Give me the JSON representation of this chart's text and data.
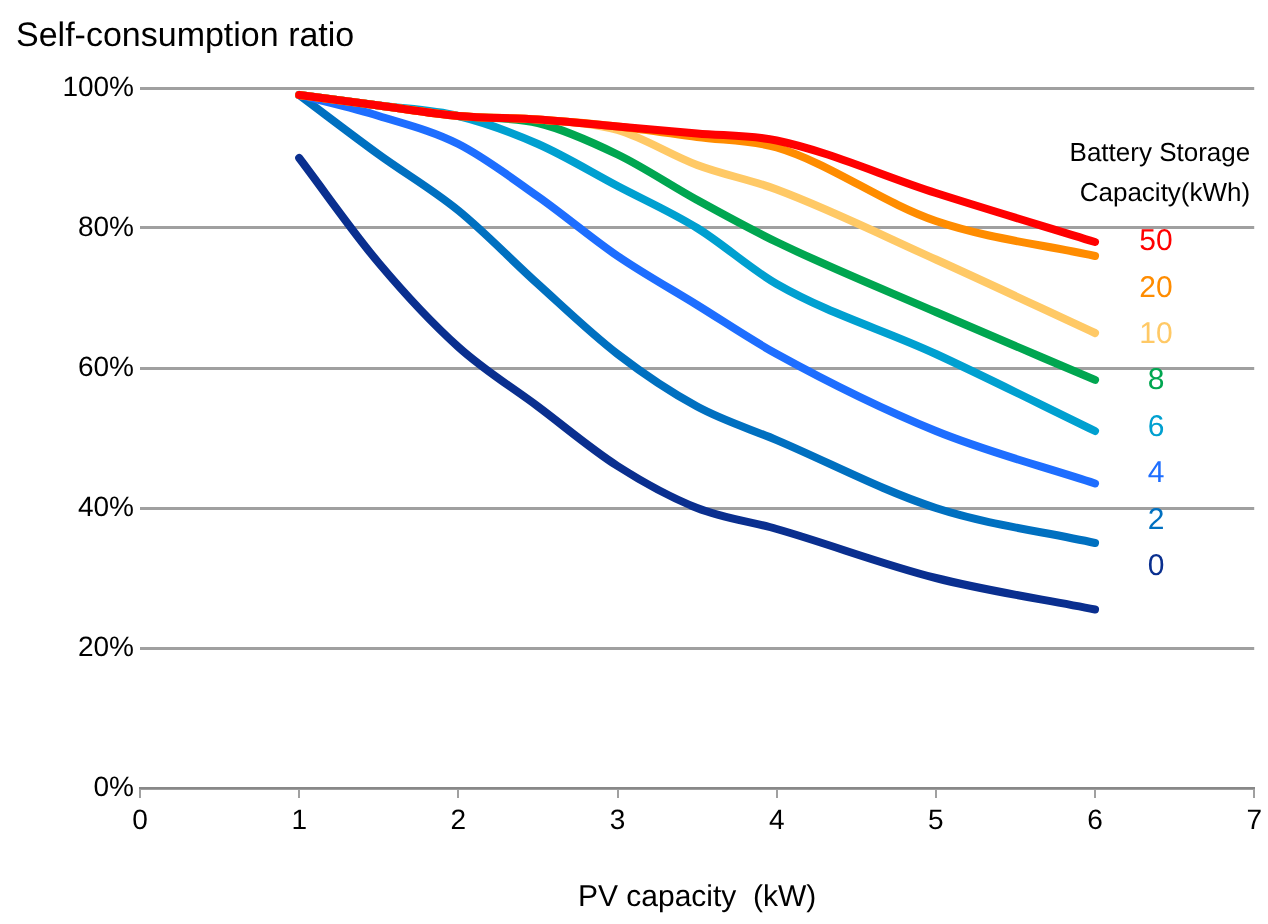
{
  "chart_data": {
    "type": "line",
    "title": "Self-consumption ratio",
    "xlabel": "PV capacity  (kW)",
    "legend_title": "Battery Storage Capacity(kWh)",
    "legend": "right",
    "grid": "y",
    "marker": "none",
    "line_style": "solid",
    "xlim": [
      0,
      7
    ],
    "xticks": [
      0,
      1,
      2,
      3,
      4,
      5,
      6,
      7
    ],
    "ylim": [
      0,
      100
    ],
    "yticks": [
      {
        "value": 0,
        "label": "0%"
      },
      {
        "value": 20,
        "label": "20%"
      },
      {
        "value": 40,
        "label": "40%"
      },
      {
        "value": 60,
        "label": "60%"
      },
      {
        "value": 80,
        "label": "80%"
      },
      {
        "value": 100,
        "label": "100%"
      }
    ],
    "x": [
      1,
      1.5,
      2,
      2.5,
      3,
      3.5,
      4,
      5,
      6
    ],
    "series": [
      {
        "name": "50",
        "color": "#ff0000",
        "values": [
          99,
          97.5,
          96,
          95.5,
          94.5,
          93.5,
          92.5,
          85,
          78
        ]
      },
      {
        "name": "20",
        "color": "#ff8c00",
        "values": [
          99,
          97.5,
          96,
          95.5,
          94.5,
          93,
          91.5,
          81,
          76
        ]
      },
      {
        "name": "10",
        "color": "#ffc966",
        "values": [
          99,
          97.5,
          96,
          95.5,
          94,
          89,
          85.5,
          75.5,
          65
        ]
      },
      {
        "name": "8",
        "color": "#00a650",
        "values": [
          99,
          97.5,
          96,
          95,
          90.5,
          84,
          78,
          68,
          58.3
        ]
      },
      {
        "name": "6",
        "color": "#00a0d0",
        "values": [
          99,
          97.5,
          96,
          92,
          86,
          80,
          72,
          62,
          51
        ]
      },
      {
        "name": "4",
        "color": "#1e6eff",
        "values": [
          99,
          96,
          92,
          84.5,
          76,
          69,
          62,
          51,
          43.5
        ]
      },
      {
        "name": "2",
        "color": "#0070c0",
        "values": [
          99,
          90.5,
          82.5,
          72,
          62,
          54.5,
          49.7,
          40,
          35
        ]
      },
      {
        "name": "0",
        "color": "#0a2f8f",
        "values": [
          90,
          75,
          63,
          54.5,
          46,
          40,
          37,
          30,
          25.5
        ]
      }
    ]
  }
}
